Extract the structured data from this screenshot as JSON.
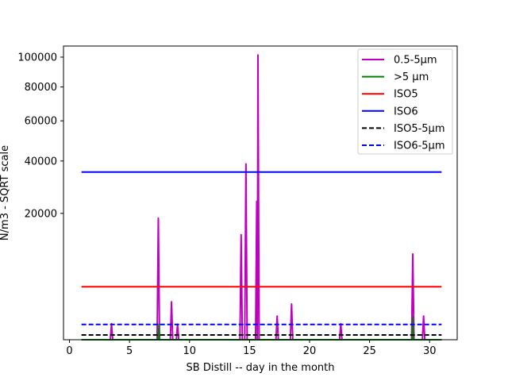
{
  "chart_data": {
    "type": "line",
    "title": "",
    "xlabel": "SB Distill -- day in the month",
    "ylabel": "N/m3 - SQRT scale",
    "xlim": [
      -0.5,
      32.3
    ],
    "ylim": [
      0,
      108000
    ],
    "y_scale": "sqrt",
    "grid": false,
    "legend_position": "top-right",
    "x_ticks": [
      0,
      5,
      10,
      15,
      20,
      25,
      30
    ],
    "x_tick_labels": [
      "0",
      "5",
      "10",
      "15",
      "20",
      "25",
      "30"
    ],
    "y_ticks": [
      20000,
      40000,
      60000,
      80000,
      100000
    ],
    "y_tick_labels": [
      "20000",
      "40000",
      "60000",
      "80000",
      "100000"
    ],
    "series": [
      {
        "name": "0.5-5µm",
        "color": "#bf00bf",
        "style": "solid",
        "x": [
          1.0,
          3.4,
          3.5,
          3.6,
          7.3,
          7.4,
          7.5,
          8.4,
          8.5,
          8.6,
          8.9,
          9.0,
          9.1,
          14.2,
          14.3,
          14.4,
          14.6,
          14.7,
          14.8,
          15.5,
          15.6,
          15.65,
          15.7,
          15.8,
          17.2,
          17.3,
          17.4,
          18.4,
          18.5,
          18.6,
          22.5,
          22.6,
          22.7,
          28.5,
          28.6,
          28.7,
          29.4,
          29.5,
          29.6,
          31.0
        ],
        "y": [
          0,
          0,
          320,
          0,
          0,
          18500,
          0,
          0,
          1800,
          0,
          0,
          300,
          0,
          0,
          13800,
          0,
          0,
          38700,
          0,
          0,
          24000,
          0,
          101500,
          0,
          0,
          700,
          0,
          0,
          1600,
          0,
          0,
          320,
          0,
          0,
          9200,
          0,
          0,
          700,
          0,
          0
        ]
      },
      {
        "name": ">5 µm",
        "color": "#008000",
        "style": "solid",
        "x": [
          1.0,
          7.4,
          7.45,
          7.5,
          28.55,
          28.6,
          28.65,
          31.0
        ],
        "y": [
          0,
          0,
          300,
          0,
          0,
          650,
          0,
          0
        ]
      },
      {
        "name": "ISO5",
        "color": "#ff0000",
        "style": "solid",
        "x": [
          1.0,
          31.0
        ],
        "y": [
          3520,
          3520
        ]
      },
      {
        "name": "ISO6",
        "color": "#0000ff",
        "style": "solid",
        "x": [
          1.0,
          31.0
        ],
        "y": [
          35200,
          35200
        ]
      },
      {
        "name": "ISO5-5µm",
        "color": "#000000",
        "style": "dashed",
        "x": [
          1.0,
          31.0
        ],
        "y": [
          29,
          29
        ]
      },
      {
        "name": "ISO6-5µm",
        "color": "#0000ff",
        "style": "dashed",
        "x": [
          1.0,
          31.0
        ],
        "y": [
          293,
          293
        ]
      }
    ]
  }
}
